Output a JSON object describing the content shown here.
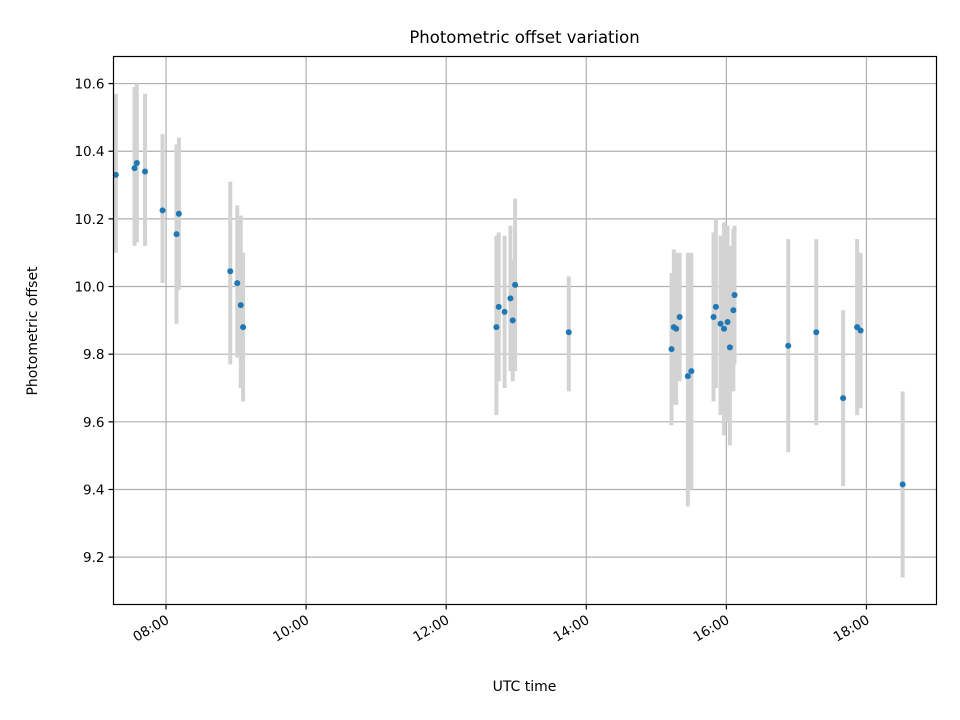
{
  "chart_data": {
    "type": "scatter",
    "title": "Photometric offset variation",
    "xlabel": "UTC time",
    "ylabel": "Photometric offset",
    "x_axis_type": "time",
    "xlim": [
      "07:15",
      "19:00"
    ],
    "ylim": [
      9.06,
      10.68
    ],
    "xticks": [
      "08:00",
      "10:00",
      "12:00",
      "14:00",
      "16:00",
      "18:00"
    ],
    "yticks": [
      "9.2",
      "9.4",
      "9.6",
      "9.8",
      "10.0",
      "10.2",
      "10.4",
      "10.6"
    ],
    "grid": true,
    "colors": {
      "point": "#1f77b4",
      "errorbar": "#d3d3d3",
      "grid": "#b0b0b0"
    },
    "points": [
      {
        "x": "07:17",
        "y": 10.33,
        "low": 10.1,
        "high": 10.57
      },
      {
        "x": "07:33",
        "y": 10.35,
        "low": 10.12,
        "high": 10.59
      },
      {
        "x": "07:35",
        "y": 10.365,
        "low": 10.13,
        "high": 10.6
      },
      {
        "x": "07:42",
        "y": 10.34,
        "low": 10.12,
        "high": 10.57
      },
      {
        "x": "07:57",
        "y": 10.225,
        "low": 10.01,
        "high": 10.45
      },
      {
        "x": "08:09",
        "y": 10.155,
        "low": 9.89,
        "high": 10.42
      },
      {
        "x": "08:11",
        "y": 10.215,
        "low": 9.99,
        "high": 10.44
      },
      {
        "x": "08:55",
        "y": 10.045,
        "low": 9.77,
        "high": 10.31
      },
      {
        "x": "09:01",
        "y": 10.01,
        "low": 9.79,
        "high": 10.24
      },
      {
        "x": "09:04",
        "y": 9.945,
        "low": 9.7,
        "high": 10.21
      },
      {
        "x": "09:06",
        "y": 9.88,
        "low": 9.66,
        "high": 10.1
      },
      {
        "x": "12:43",
        "y": 9.88,
        "low": 9.62,
        "high": 10.15
      },
      {
        "x": "12:45",
        "y": 9.94,
        "low": 9.72,
        "high": 10.16
      },
      {
        "x": "12:50",
        "y": 9.925,
        "low": 9.7,
        "high": 10.15
      },
      {
        "x": "12:55",
        "y": 9.965,
        "low": 9.75,
        "high": 10.18
      },
      {
        "x": "12:57",
        "y": 9.9,
        "low": 9.72,
        "high": 10.08
      },
      {
        "x": "12:59",
        "y": 10.005,
        "low": 9.75,
        "high": 10.26
      },
      {
        "x": "13:45",
        "y": 9.865,
        "low": 9.69,
        "high": 10.03
      },
      {
        "x": "15:13",
        "y": 9.815,
        "low": 9.59,
        "high": 10.04
      },
      {
        "x": "15:15",
        "y": 9.88,
        "low": 9.65,
        "high": 10.11
      },
      {
        "x": "15:17",
        "y": 9.875,
        "low": 9.65,
        "high": 10.1
      },
      {
        "x": "15:20",
        "y": 9.91,
        "low": 9.72,
        "high": 10.1
      },
      {
        "x": "15:27",
        "y": 9.735,
        "low": 9.35,
        "high": 10.1
      },
      {
        "x": "15:30",
        "y": 9.75,
        "low": 9.4,
        "high": 10.1
      },
      {
        "x": "15:49",
        "y": 9.91,
        "low": 9.66,
        "high": 10.16
      },
      {
        "x": "15:51",
        "y": 9.94,
        "low": 9.7,
        "high": 10.2
      },
      {
        "x": "15:55",
        "y": 9.89,
        "low": 9.62,
        "high": 10.15
      },
      {
        "x": "15:58",
        "y": 9.875,
        "low": 9.56,
        "high": 10.19
      },
      {
        "x": "16:01",
        "y": 9.895,
        "low": 9.6,
        "high": 10.18
      },
      {
        "x": "16:03",
        "y": 9.82,
        "low": 9.53,
        "high": 10.12
      },
      {
        "x": "16:06",
        "y": 9.93,
        "low": 9.69,
        "high": 10.17
      },
      {
        "x": "16:07",
        "y": 9.975,
        "low": 9.77,
        "high": 10.18
      },
      {
        "x": "16:53",
        "y": 9.825,
        "low": 9.51,
        "high": 10.14
      },
      {
        "x": "17:17",
        "y": 9.865,
        "low": 9.59,
        "high": 10.14
      },
      {
        "x": "17:40",
        "y": 9.67,
        "low": 9.41,
        "high": 9.93
      },
      {
        "x": "17:52",
        "y": 9.88,
        "low": 9.62,
        "high": 10.14
      },
      {
        "x": "17:55",
        "y": 9.87,
        "low": 9.64,
        "high": 10.1
      },
      {
        "x": "18:31",
        "y": 9.415,
        "low": 9.14,
        "high": 9.69
      }
    ]
  }
}
